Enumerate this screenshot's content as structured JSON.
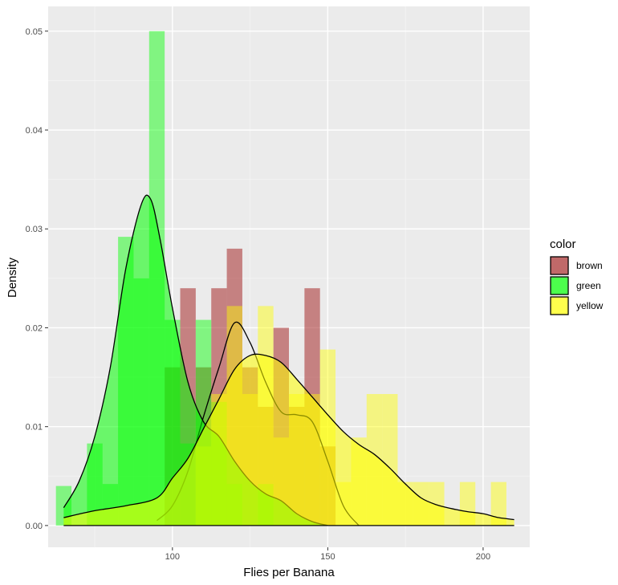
{
  "chart_data": {
    "type": "histogram-density",
    "xlabel": "Flies per Banana",
    "ylabel": "Density",
    "xlim": [
      60,
      215
    ],
    "ylim": [
      -0.0022,
      0.0525
    ],
    "x_ticks": [
      100,
      150,
      200
    ],
    "x_tick_labels": [
      "100",
      "150",
      "200"
    ],
    "y_ticks": [
      0,
      0.01,
      0.02,
      0.03,
      0.04,
      0.05
    ],
    "y_tick_labels": [
      "0.00",
      "0.01",
      "0.02",
      "0.03",
      "0.04",
      "0.05"
    ],
    "grid": true,
    "background": "#ebebeb",
    "legend": {
      "title": "color",
      "position": "right",
      "entries": [
        "brown",
        "green",
        "yellow"
      ]
    },
    "bin_width": 5,
    "series": [
      {
        "name": "brown",
        "color": "#a52a2a",
        "fill_opacity": 0.55,
        "density_fill": false,
        "bins": [
          [
            100,
            0.016
          ],
          [
            105,
            0.024
          ],
          [
            110,
            0.016
          ],
          [
            115,
            0.024
          ],
          [
            120,
            0.028
          ],
          [
            125,
            0.016
          ],
          [
            130,
            0.012
          ],
          [
            135,
            0.02
          ],
          [
            140,
            0.012
          ],
          [
            145,
            0.024
          ],
          [
            150,
            0.008
          ]
        ],
        "density": [
          [
            95,
            0.0005
          ],
          [
            100,
            0.002
          ],
          [
            105,
            0.0055
          ],
          [
            110,
            0.011
          ],
          [
            115,
            0.016
          ],
          [
            120,
            0.0205
          ],
          [
            125,
            0.0185
          ],
          [
            130,
            0.0145
          ],
          [
            135,
            0.0115
          ],
          [
            140,
            0.0112
          ],
          [
            145,
            0.0105
          ],
          [
            150,
            0.0065
          ],
          [
            155,
            0.002
          ],
          [
            160,
            0
          ]
        ]
      },
      {
        "name": "green",
        "color": "#00ff00",
        "fill_opacity": 0.45,
        "density_fill": true,
        "bins": [
          [
            65,
            0.004
          ],
          [
            75,
            0.0083
          ],
          [
            80,
            0.0042
          ],
          [
            85,
            0.0292
          ],
          [
            90,
            0.025
          ],
          [
            95,
            0.05
          ],
          [
            100,
            0.0208
          ],
          [
            105,
            0.0083
          ],
          [
            110,
            0.0208
          ],
          [
            115,
            0.0125
          ],
          [
            120,
            0.0042
          ],
          [
            130,
            0.0042
          ]
        ],
        "density": [
          [
            65,
            0.0018
          ],
          [
            70,
            0.0045
          ],
          [
            75,
            0.009
          ],
          [
            80,
            0.016
          ],
          [
            85,
            0.026
          ],
          [
            90,
            0.0325
          ],
          [
            93,
            0.033
          ],
          [
            96,
            0.029
          ],
          [
            100,
            0.022
          ],
          [
            105,
            0.0145
          ],
          [
            110,
            0.0105
          ],
          [
            115,
            0.009
          ],
          [
            120,
            0.0065
          ],
          [
            125,
            0.0045
          ],
          [
            130,
            0.0032
          ],
          [
            135,
            0.0025
          ],
          [
            140,
            0.0012
          ],
          [
            145,
            0.0004
          ],
          [
            150,
            0
          ]
        ]
      },
      {
        "name": "yellow",
        "color": "#ffff00",
        "fill_opacity": 0.45,
        "density_fill": true,
        "bins": [
          [
            110,
            0.008
          ],
          [
            115,
            0.0133
          ],
          [
            120,
            0.0222
          ],
          [
            125,
            0.0133
          ],
          [
            130,
            0.0222
          ],
          [
            135,
            0.0089
          ],
          [
            140,
            0.0133
          ],
          [
            145,
            0.0133
          ],
          [
            150,
            0.0178
          ],
          [
            155,
            0.0044
          ],
          [
            160,
            0.0089
          ],
          [
            165,
            0.0133
          ],
          [
            170,
            0.0133
          ],
          [
            175,
            0.0044
          ],
          [
            180,
            0.0044
          ],
          [
            185,
            0.0044
          ],
          [
            195,
            0.0044
          ],
          [
            205,
            0.0044
          ]
        ],
        "density": [
          [
            65,
            0.0008
          ],
          [
            75,
            0.0015
          ],
          [
            85,
            0.002
          ],
          [
            95,
            0.0028
          ],
          [
            100,
            0.0048
          ],
          [
            105,
            0.0068
          ],
          [
            110,
            0.0098
          ],
          [
            115,
            0.0128
          ],
          [
            120,
            0.0158
          ],
          [
            125,
            0.0172
          ],
          [
            130,
            0.0172
          ],
          [
            135,
            0.0165
          ],
          [
            140,
            0.0148
          ],
          [
            145,
            0.013
          ],
          [
            150,
            0.0112
          ],
          [
            155,
            0.0095
          ],
          [
            160,
            0.0082
          ],
          [
            165,
            0.0072
          ],
          [
            170,
            0.0058
          ],
          [
            175,
            0.0042
          ],
          [
            180,
            0.0028
          ],
          [
            185,
            0.0021
          ],
          [
            190,
            0.0017
          ],
          [
            195,
            0.0014
          ],
          [
            200,
            0.0012
          ],
          [
            205,
            0.0008
          ],
          [
            210,
            0.0006
          ]
        ]
      }
    ]
  }
}
